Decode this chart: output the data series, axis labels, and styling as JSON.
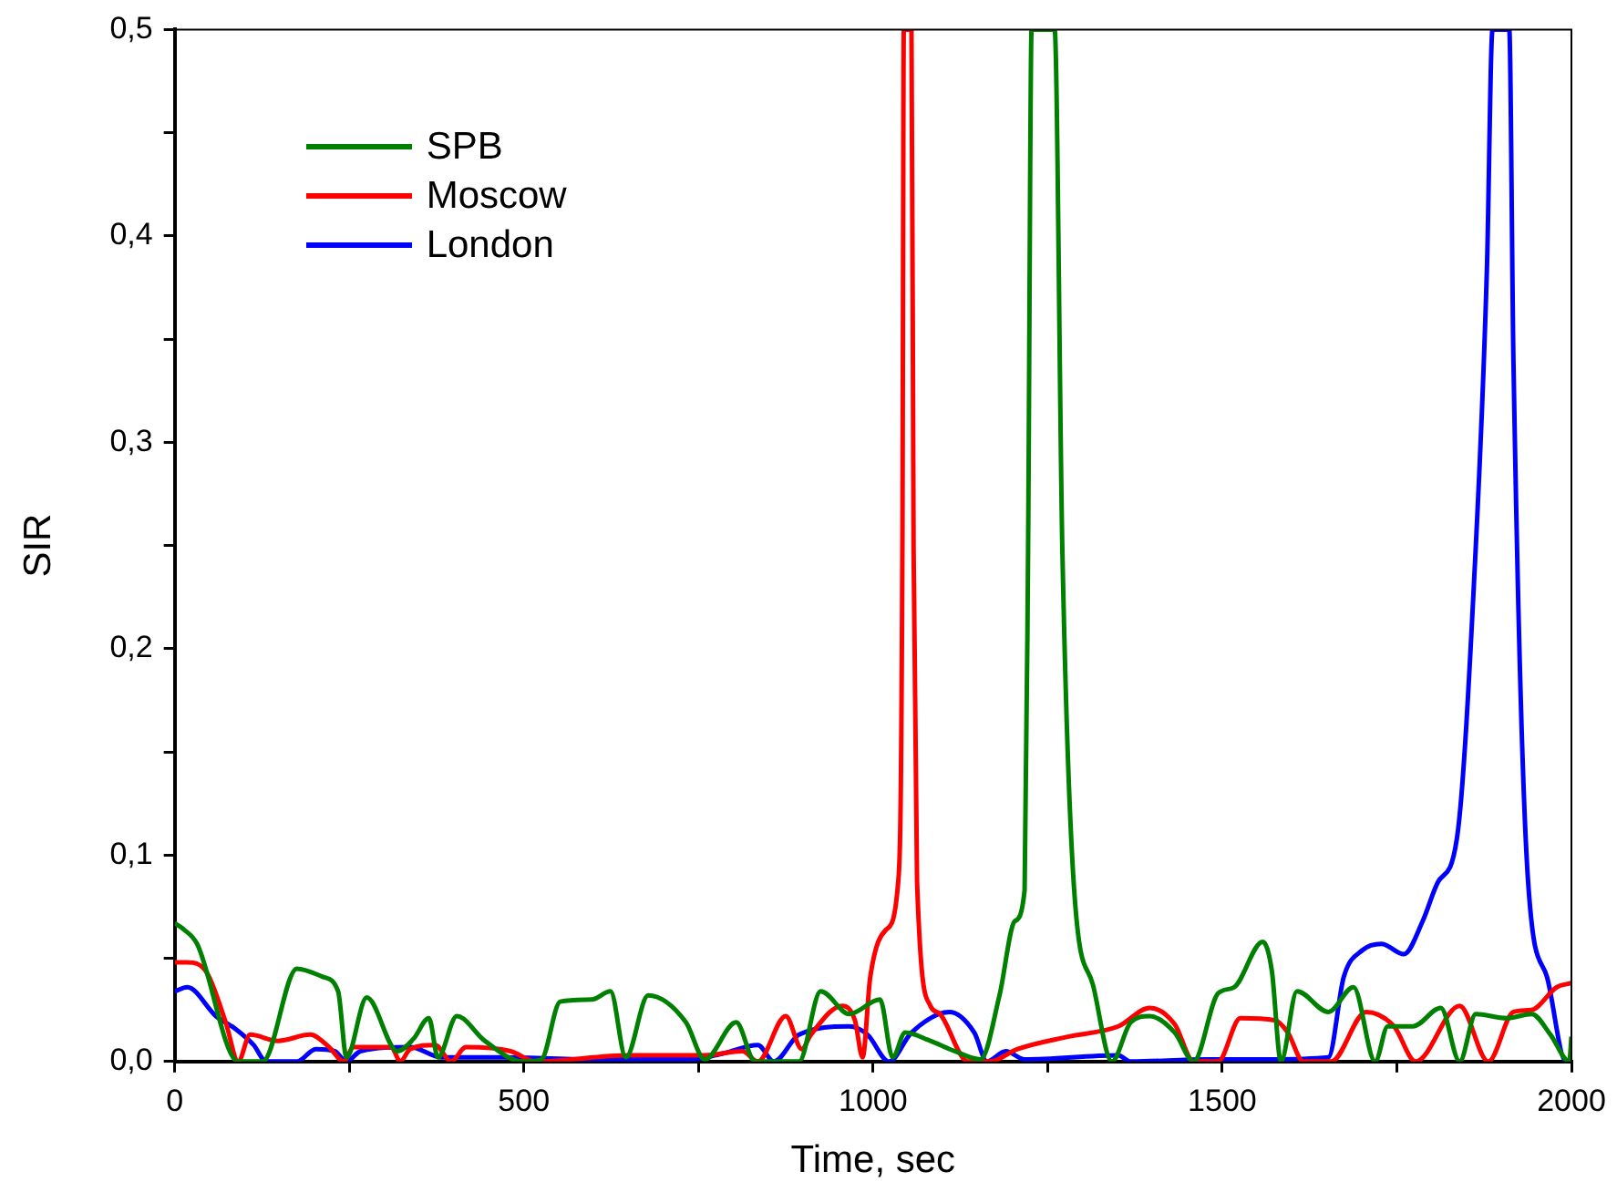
{
  "chart_data": {
    "type": "line",
    "xlabel": "Time, sec",
    "ylabel": "SIR",
    "xlim": [
      0,
      2000
    ],
    "ylim": [
      0,
      0.5
    ],
    "xticks": [
      0,
      {
        "value": 250,
        "label": null
      },
      500,
      {
        "value": 750,
        "label": null
      },
      1000,
      {
        "value": 1250,
        "label": null
      },
      1500,
      {
        "value": 1750,
        "label": null
      },
      2000
    ],
    "yticks": [
      {
        "value": 0,
        "label": "0,0"
      },
      {
        "value": 0.05,
        "label": null
      },
      {
        "value": 0.1,
        "label": "0,1"
      },
      {
        "value": 0.15,
        "label": null
      },
      {
        "value": 0.2,
        "label": "0,2"
      },
      {
        "value": 0.25,
        "label": null
      },
      {
        "value": 0.3,
        "label": "0,3"
      },
      {
        "value": 0.35,
        "label": null
      },
      {
        "value": 0.4,
        "label": "0,4"
      },
      {
        "value": 0.45,
        "label": null
      },
      {
        "value": 0.5,
        "label": "0,5"
      }
    ],
    "grid": false,
    "legend": "top left",
    "marker": "none",
    "line_style": "solid",
    "series": [
      {
        "name": "SPB",
        "color": "#008000",
        "x": [
          0,
          13,
          32,
          91,
          126,
          175,
          212,
          234,
          246,
          275,
          319,
          342,
          364,
          377,
          404,
          444,
          498,
          525,
          552,
          597,
          624,
          646,
          678,
          732,
          759,
          804,
          831,
          867,
          894,
          925,
          966,
          1010,
          1028,
          1046,
          1082,
          1117,
          1154,
          1181,
          1203,
          1217,
          1222,
          1227,
          1260,
          1271,
          1288,
          1315,
          1342,
          1369,
          1396,
          1432,
          1459,
          1494,
          1517,
          1558,
          1571,
          1584,
          1607,
          1652,
          1688,
          1719,
          1737,
          1773,
          1813,
          1840,
          1863,
          1907,
          1943,
          1970,
          1997,
          2000
        ],
        "values": [
          0.067,
          0.064,
          0.057,
          0,
          0,
          0.045,
          0.041,
          0.034,
          0.002,
          0.031,
          0.005,
          0.011,
          0.021,
          0.002,
          0.022,
          0.01,
          0,
          0.001,
          0.029,
          0.03,
          0.034,
          0.002,
          0.032,
          0.019,
          0.001,
          0.019,
          0,
          0,
          0,
          0.034,
          0.023,
          0.03,
          0.002,
          0.014,
          0.01,
          0.005,
          0.001,
          0.032,
          0.068,
          0.083,
          0.249,
          0.5,
          0.5,
          0.249,
          0.083,
          0.037,
          0,
          0.019,
          0.022,
          0.014,
          0,
          0.033,
          0.036,
          0.058,
          0.044,
          0,
          0.034,
          0.024,
          0.036,
          0,
          0.017,
          0.017,
          0.026,
          0,
          0.023,
          0.021,
          0.023,
          0.013,
          0,
          0.012
        ]
      },
      {
        "name": "Moscow",
        "color": "#ff0000",
        "x": [
          0,
          18,
          46,
          73,
          91,
          108,
          148,
          194,
          221,
          242,
          256,
          310,
          323,
          337,
          373,
          396,
          417,
          481,
          517,
          651,
          705,
          759,
          813,
          835,
          875,
          898,
          911,
          956,
          974,
          985,
          996,
          1019,
          1036,
          1042,
          1044,
          1055,
          1058,
          1063,
          1082,
          1096,
          1136,
          1167,
          1207,
          1279,
          1351,
          1396,
          1432,
          1459,
          1494,
          1526,
          1575,
          1594,
          1616,
          1656,
          1706,
          1746,
          1777,
          1840,
          1881,
          1917,
          1943,
          1979,
          2000
        ],
        "values": [
          0.048,
          0.048,
          0.043,
          0.019,
          0,
          0.013,
          0.01,
          0.013,
          0.007,
          0,
          0.007,
          0.007,
          0,
          0.006,
          0.008,
          0,
          0.007,
          0.005,
          0,
          0.003,
          0.003,
          0.003,
          0.005,
          0,
          0.022,
          0.006,
          0.013,
          0.027,
          0.02,
          0.002,
          0.041,
          0.064,
          0.087,
          0.249,
          0.5,
          0.5,
          0.249,
          0.087,
          0.027,
          0.023,
          0,
          0,
          0.006,
          0.012,
          0.017,
          0.026,
          0.018,
          0,
          0,
          0.021,
          0.02,
          0.014,
          0,
          0,
          0.024,
          0.017,
          0,
          0.027,
          0,
          0.024,
          0.025,
          0.036,
          0.038
        ]
      },
      {
        "name": "London",
        "color": "#0000ff",
        "x": [
          0,
          18,
          59,
          86,
          113,
          131,
          175,
          202,
          229,
          246,
          266,
          337,
          382,
          471,
          606,
          740,
          786,
          835,
          858,
          894,
          966,
          992,
          1023,
          1055,
          1109,
          1145,
          1163,
          1190,
          1217,
          1351,
          1369,
          1477,
          1566,
          1652,
          1674,
          1701,
          1728,
          1760,
          1787,
          1809,
          1836,
          1863,
          1879,
          1887,
          1911,
          1917,
          1938,
          1965,
          1992,
          2000
        ],
        "values": [
          0.034,
          0.036,
          0.022,
          0.016,
          0.008,
          0,
          0,
          0.006,
          0.005,
          0,
          0.005,
          0.007,
          0.002,
          0.002,
          0.001,
          0.001,
          0.004,
          0.008,
          0,
          0.013,
          0.017,
          0.013,
          0,
          0.014,
          0.024,
          0.014,
          0,
          0.005,
          0.001,
          0.003,
          0,
          0.001,
          0.001,
          0.002,
          0.041,
          0.054,
          0.057,
          0.052,
          0.068,
          0.087,
          0.108,
          0.249,
          0.384,
          0.5,
          0.5,
          0.339,
          0.087,
          0.041,
          0,
          0
        ]
      }
    ]
  }
}
